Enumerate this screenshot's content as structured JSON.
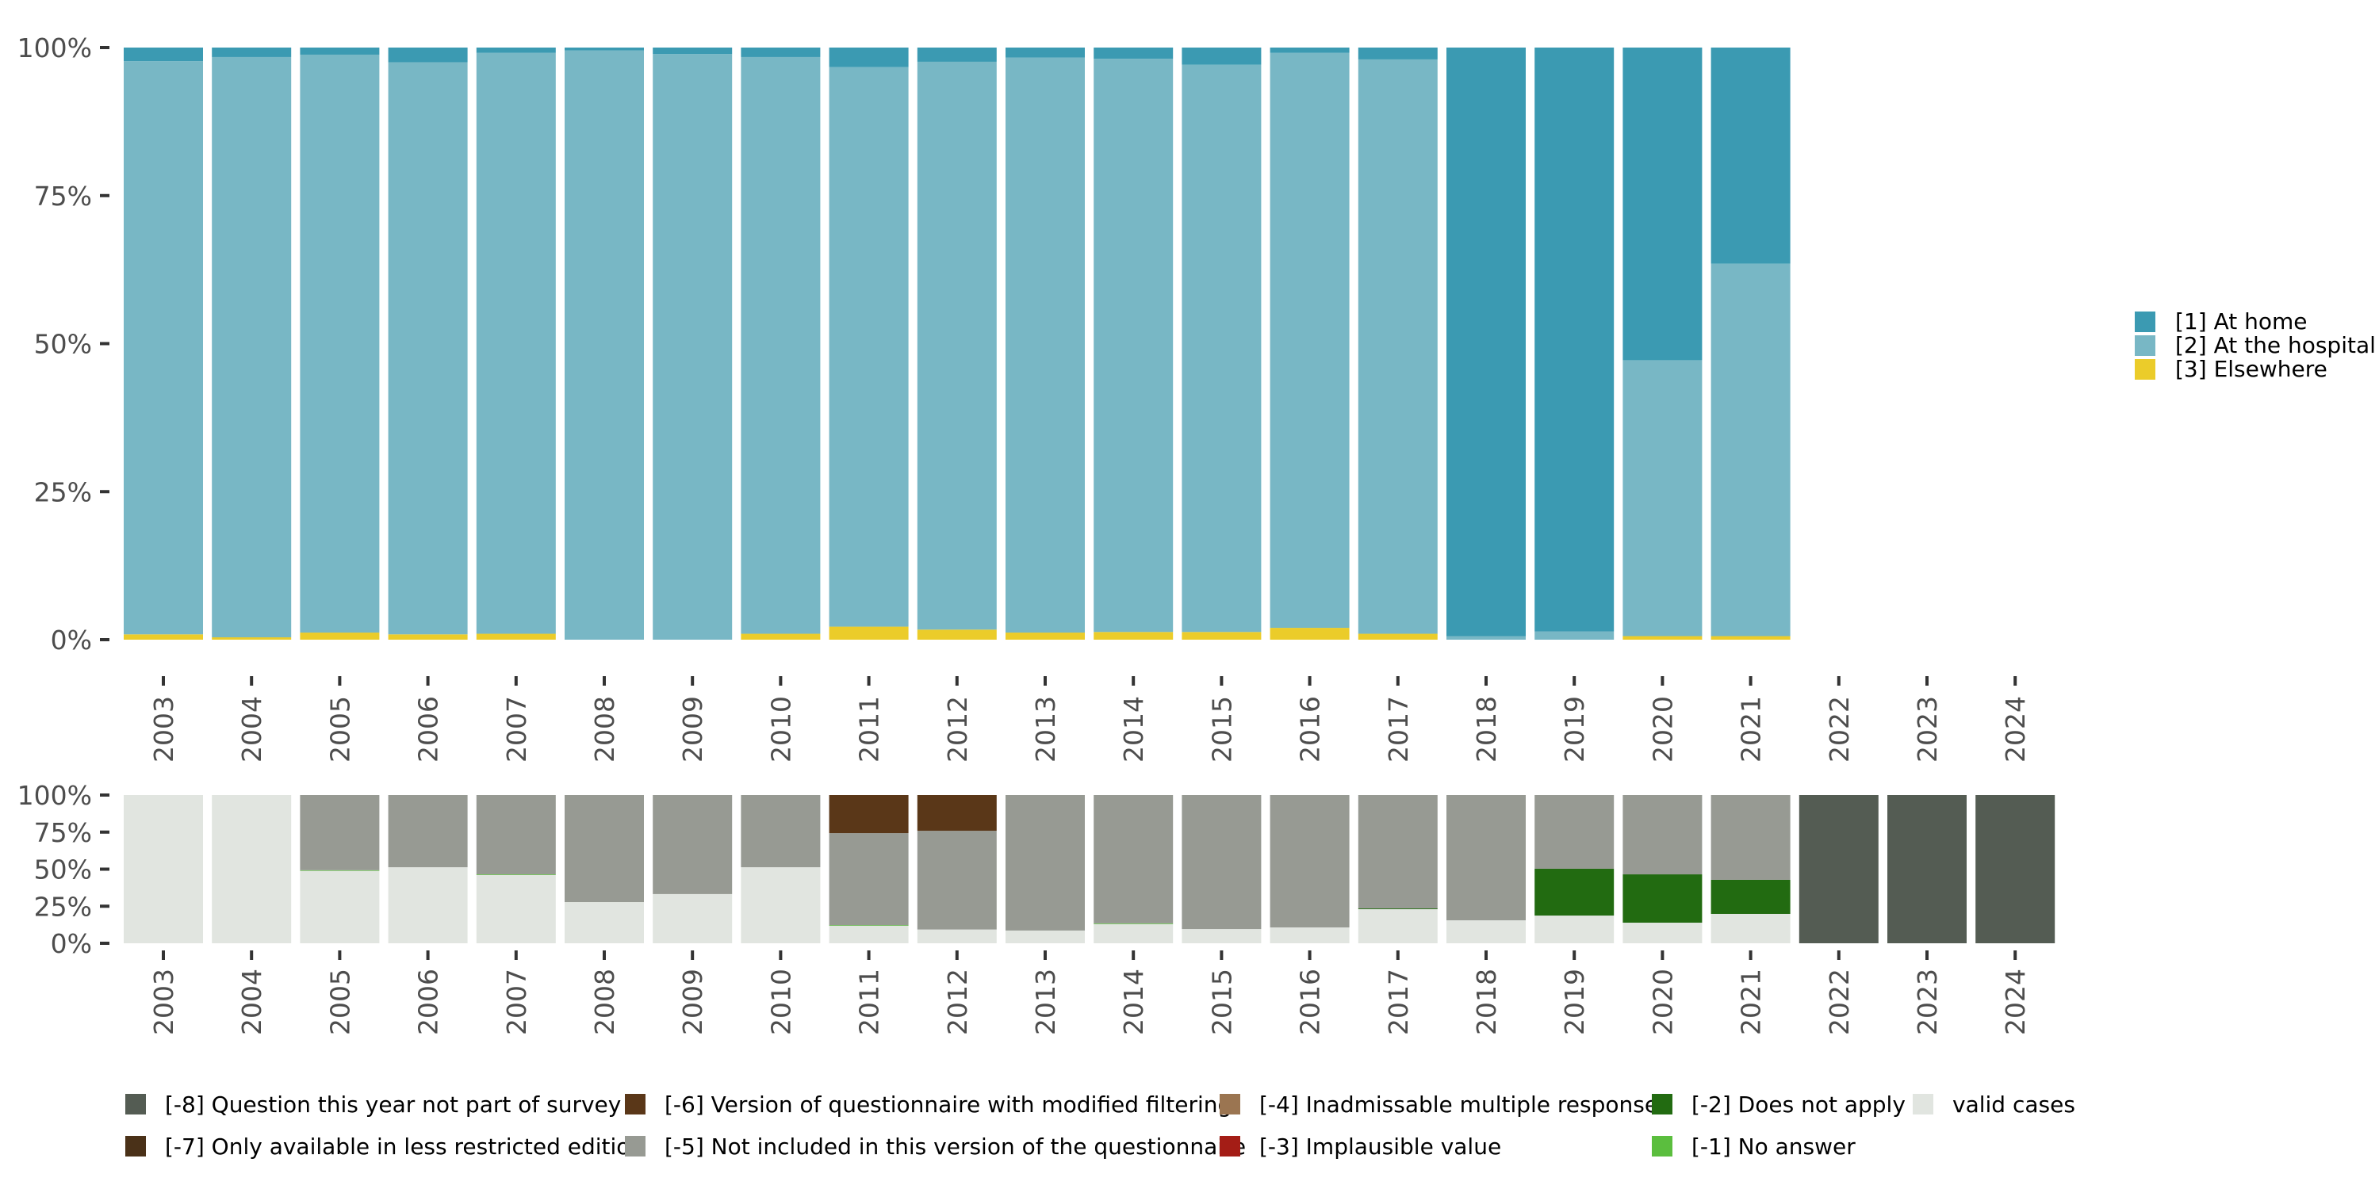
{
  "chart_data": [
    {
      "type": "bar",
      "stacked": true,
      "percent": true,
      "title": "",
      "xlabel": "",
      "ylabel": "",
      "ylim": [
        0,
        100
      ],
      "yticks": [
        "0%",
        "25%",
        "50%",
        "75%",
        "100%"
      ],
      "categories": [
        "2003",
        "2004",
        "2005",
        "2006",
        "2007",
        "2008",
        "2009",
        "2010",
        "2011",
        "2012",
        "2013",
        "2014",
        "2015",
        "2016",
        "2017",
        "2018",
        "2019",
        "2020",
        "2021",
        "2022",
        "2023",
        "2024"
      ],
      "legend_position": "right",
      "series": [
        {
          "name": "[3] Elsewhere",
          "color": "#EBCC2A",
          "values": [
            0.9,
            0.4,
            1.2,
            0.9,
            1.0,
            0.0,
            0.0,
            1.0,
            2.2,
            1.7,
            1.2,
            1.3,
            1.3,
            2.0,
            1.0,
            0.0,
            0.0,
            0.6,
            0.6,
            null,
            null,
            null
          ]
        },
        {
          "name": "[2] At the hospital",
          "color": "#78B7C5",
          "values": [
            96.8,
            98.0,
            97.6,
            96.6,
            98.1,
            99.5,
            98.9,
            97.4,
            94.5,
            95.9,
            97.1,
            96.8,
            95.8,
            97.1,
            97.0,
            0.6,
            1.4,
            46.6,
            62.9,
            null,
            null,
            null
          ]
        },
        {
          "name": "[1] At home",
          "color": "#3B9AB2",
          "values": [
            2.3,
            1.6,
            1.2,
            2.5,
            0.9,
            0.5,
            1.1,
            1.6,
            3.3,
            2.4,
            1.7,
            1.9,
            2.9,
            0.9,
            2.0,
            99.4,
            98.6,
            52.8,
            36.5,
            null,
            null,
            null
          ]
        }
      ]
    },
    {
      "type": "bar",
      "stacked": true,
      "percent": true,
      "title": "",
      "xlabel": "",
      "ylabel": "",
      "ylim": [
        0,
        100
      ],
      "yticks": [
        "0%",
        "25%",
        "50%",
        "75%",
        "100%"
      ],
      "categories": [
        "2003",
        "2004",
        "2005",
        "2006",
        "2007",
        "2008",
        "2009",
        "2010",
        "2011",
        "2012",
        "2013",
        "2014",
        "2015",
        "2016",
        "2017",
        "2018",
        "2019",
        "2020",
        "2021",
        "2022",
        "2023",
        "2024"
      ],
      "legend_position": "bottom",
      "series": [
        {
          "name": "valid cases",
          "color": "#E1E5E0",
          "values": [
            100,
            100,
            49.0,
            51.3,
            46.2,
            27.8,
            33.2,
            51.3,
            11.9,
            9.3,
            8.6,
            13.0,
            9.6,
            10.7,
            23.0,
            15.5,
            18.7,
            13.9,
            19.8,
            0,
            0,
            0
          ]
        },
        {
          "name": "[-1] No answer",
          "color": "#5BBE3E",
          "values": [
            0,
            0,
            0.3,
            0,
            0.3,
            0,
            0,
            0,
            0.3,
            0,
            0,
            0.4,
            0,
            0,
            0,
            0,
            0,
            0,
            0,
            0,
            0,
            0
          ]
        },
        {
          "name": "[-2] Does not apply",
          "color": "#226B11",
          "values": [
            0,
            0,
            0,
            0,
            0,
            0,
            0,
            0,
            0,
            0,
            0,
            0,
            0,
            0,
            0.5,
            0,
            31.6,
            32.6,
            23.0,
            0,
            0,
            0
          ]
        },
        {
          "name": "[-3] Implausible value",
          "color": "#A41D16",
          "values": [
            0,
            0,
            0,
            0,
            0,
            0,
            0,
            0,
            0,
            0,
            0,
            0,
            0,
            0,
            0,
            0,
            0,
            0,
            0,
            0,
            0,
            0
          ]
        },
        {
          "name": "[-4] Inadmissable multiple response",
          "color": "#9B7551",
          "values": [
            0,
            0,
            0,
            0,
            0,
            0,
            0,
            0,
            0,
            0,
            0,
            0,
            0,
            0,
            0,
            0,
            0,
            0,
            0,
            0,
            0,
            0
          ]
        },
        {
          "name": "[-5] Not included in this version of the questionnaire",
          "color": "#979A93",
          "values": [
            0,
            0,
            50.7,
            48.7,
            53.5,
            72.2,
            66.8,
            48.7,
            62.1,
            66.6,
            91.4,
            86.6,
            90.4,
            89.3,
            76.5,
            84.5,
            49.7,
            53.5,
            57.2,
            0,
            0,
            0
          ]
        },
        {
          "name": "[-6] Version of questionnaire with modified filtering",
          "color": "#5A3718",
          "values": [
            0,
            0,
            0,
            0,
            0,
            0,
            0,
            0,
            25.7,
            24.1,
            0,
            0,
            0,
            0,
            0,
            0,
            0,
            0,
            0,
            0,
            0,
            0
          ]
        },
        {
          "name": "[-7] Only available in less restricted edition",
          "color": "#4A3118",
          "values": [
            0,
            0,
            0,
            0,
            0,
            0,
            0,
            0,
            0,
            0,
            0,
            0,
            0,
            0,
            0,
            0,
            0,
            0,
            0,
            0,
            0,
            0
          ]
        },
        {
          "name": "[-8] Question this year not part of survey",
          "color": "#545C53",
          "values": [
            0,
            0,
            0,
            0,
            0,
            0,
            0,
            0,
            0,
            0,
            0,
            0,
            0,
            0,
            0,
            0,
            0,
            0,
            0,
            100,
            100,
            100
          ]
        }
      ]
    }
  ],
  "top_legend": [
    {
      "label": "[1] At home",
      "color": "#3B9AB2"
    },
    {
      "label": "[2] At the hospital",
      "color": "#78B7C5"
    },
    {
      "label": "[3] Elsewhere",
      "color": "#EBCC2A"
    }
  ],
  "bottom_legend": [
    {
      "label": "[-8] Question this year not part of survey",
      "color": "#545C53"
    },
    {
      "label": "[-7] Only available in less restricted edition",
      "color": "#4A3118"
    },
    {
      "label": "[-6] Version of questionnaire with modified filtering",
      "color": "#5A3718"
    },
    {
      "label": "[-5] Not included in this version of the questionnaire",
      "color": "#979A93"
    },
    {
      "label": "[-4] Inadmissable multiple response",
      "color": "#9B7551"
    },
    {
      "label": "[-3] Implausible value",
      "color": "#A41D16"
    },
    {
      "label": "[-2] Does not apply",
      "color": "#226B11"
    },
    {
      "label": "[-1] No answer",
      "color": "#5BBE3E"
    },
    {
      "label": "valid cases",
      "color": "#E1E5E0"
    }
  ]
}
